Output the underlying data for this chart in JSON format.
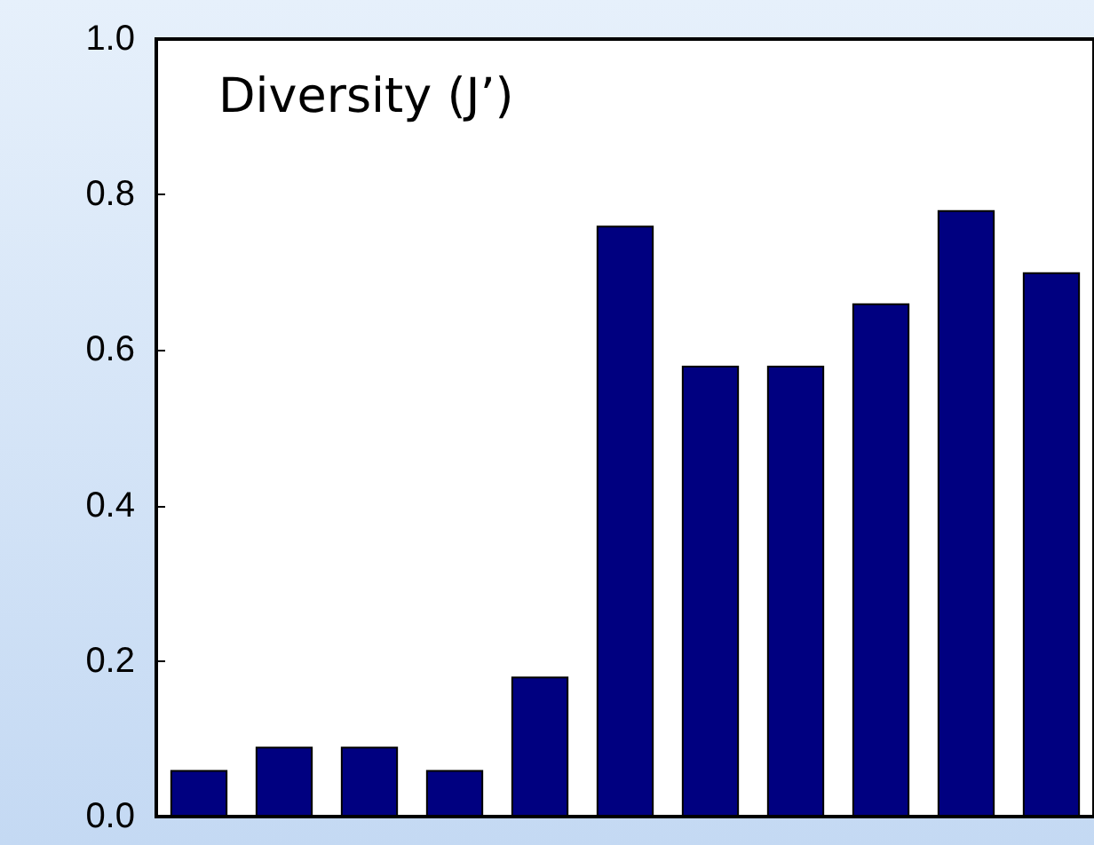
{
  "chart_data": {
    "type": "bar",
    "title": "Diversity (J’)",
    "categories": [
      null,
      null,
      null,
      null,
      null,
      null,
      null,
      null,
      null,
      null,
      null
    ],
    "values": [
      0.06,
      0.09,
      0.09,
      0.06,
      0.18,
      0.76,
      0.58,
      0.58,
      0.66,
      0.78,
      0.7
    ],
    "color": "#000080",
    "ylim": [
      0,
      1
    ],
    "yticks": [
      {
        "value": 0,
        "label": "0.0"
      },
      {
        "value": 0.2,
        "label": "0.2"
      },
      {
        "value": 0.4,
        "label": "0.4"
      },
      {
        "value": 0.6,
        "label": "0.6"
      },
      {
        "value": 0.8,
        "label": "0.8"
      },
      {
        "value": 1,
        "label": "1.0"
      }
    ],
    "tick_labels": "y",
    "grid": false
  }
}
